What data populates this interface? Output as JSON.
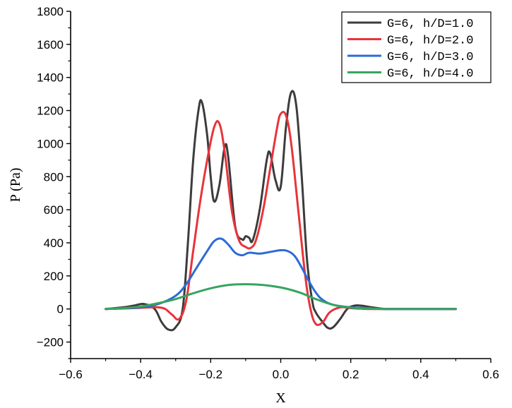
{
  "chart_data": {
    "type": "line",
    "title": "",
    "xlabel": "X",
    "ylabel": "P (Pa)",
    "xlim": [
      -0.6,
      0.6
    ],
    "ylim": [
      -300,
      1800
    ],
    "xticks": [
      -0.6,
      -0.4,
      -0.2,
      0.0,
      0.2,
      0.4,
      0.6
    ],
    "xtick_labels": [
      "−0.6",
      "−0.4",
      "−0.2",
      "0.0",
      "0.2",
      "0.4",
      "0.6"
    ],
    "yticks": [
      -200,
      0,
      200,
      400,
      600,
      800,
      1000,
      1200,
      1400,
      1600,
      1800
    ],
    "ytick_labels": [
      "−200",
      "0",
      "200",
      "400",
      "600",
      "800",
      "1000",
      "1200",
      "1400",
      "1600",
      "1800"
    ],
    "grid": false,
    "legend_position": "top-right",
    "series": [
      {
        "name": "G=6, h/D=1.0",
        "color": "#3c3c3c",
        "x": [
          -0.5,
          -0.45,
          -0.42,
          -0.39,
          -0.36,
          -0.34,
          -0.32,
          -0.3,
          -0.28,
          -0.265,
          -0.25,
          -0.235,
          -0.225,
          -0.21,
          -0.2,
          -0.19,
          -0.175,
          -0.16,
          -0.15,
          -0.13,
          -0.11,
          -0.1,
          -0.09,
          -0.08,
          -0.06,
          -0.04,
          -0.03,
          -0.015,
          0.0,
          0.015,
          0.03,
          0.045,
          0.06,
          0.075,
          0.09,
          0.1,
          0.12,
          0.135,
          0.15,
          0.17,
          0.19,
          0.21,
          0.23,
          0.26,
          0.3,
          0.35,
          0.4,
          0.5
        ],
        "y": [
          0,
          10,
          20,
          30,
          0,
          -80,
          -125,
          -110,
          0,
          400,
          900,
          1200,
          1250,
          1050,
          800,
          650,
          750,
          980,
          920,
          500,
          420,
          440,
          430,
          415,
          600,
          900,
          940,
          780,
          740,
          1100,
          1310,
          1220,
          800,
          300,
          50,
          -20,
          -80,
          -115,
          -110,
          -60,
          0,
          20,
          20,
          10,
          0,
          0,
          0,
          0
        ]
      },
      {
        "name": "G=6, h/D=2.0",
        "color": "#e8333a",
        "x": [
          -0.5,
          -0.42,
          -0.37,
          -0.35,
          -0.33,
          -0.31,
          -0.29,
          -0.27,
          -0.25,
          -0.23,
          -0.21,
          -0.19,
          -0.175,
          -0.16,
          -0.14,
          -0.12,
          -0.1,
          -0.085,
          -0.07,
          -0.05,
          -0.03,
          -0.01,
          0.0,
          0.015,
          0.03,
          0.05,
          0.07,
          0.085,
          0.1,
          0.12,
          0.14,
          0.17,
          0.2,
          0.25,
          0.3,
          0.4,
          0.5
        ],
        "y": [
          0,
          5,
          10,
          10,
          0,
          -35,
          -60,
          50,
          350,
          650,
          900,
          1100,
          1120,
          950,
          600,
          420,
          375,
          370,
          420,
          600,
          850,
          1100,
          1180,
          1170,
          1000,
          600,
          200,
          0,
          -90,
          -80,
          -20,
          10,
          5,
          0,
          0,
          0,
          0
        ]
      },
      {
        "name": "G=6, h/D=3.0",
        "color": "#2c6bd6",
        "x": [
          -0.5,
          -0.45,
          -0.4,
          -0.35,
          -0.3,
          -0.27,
          -0.24,
          -0.21,
          -0.19,
          -0.17,
          -0.15,
          -0.13,
          -0.11,
          -0.09,
          -0.06,
          -0.03,
          0.0,
          0.02,
          0.04,
          0.06,
          0.08,
          0.1,
          0.12,
          0.15,
          0.2,
          0.25,
          0.3,
          0.4,
          0.5
        ],
        "y": [
          0,
          5,
          10,
          30,
          80,
          150,
          250,
          350,
          410,
          425,
          390,
          340,
          325,
          340,
          335,
          345,
          355,
          350,
          320,
          250,
          170,
          100,
          55,
          25,
          10,
          5,
          0,
          0,
          0
        ],
        "smooth": true
      },
      {
        "name": "G=6, h/D=4.0",
        "color": "#36a45f",
        "x": [
          -0.5,
          -0.45,
          -0.4,
          -0.35,
          -0.3,
          -0.25,
          -0.2,
          -0.15,
          -0.1,
          -0.05,
          0.0,
          0.03,
          0.06,
          0.1,
          0.15,
          0.2,
          0.25,
          0.3,
          0.4,
          0.5
        ],
        "y": [
          0,
          5,
          15,
          35,
          60,
          95,
          125,
          145,
          150,
          145,
          130,
          115,
          95,
          60,
          25,
          8,
          3,
          0,
          0,
          0
        ],
        "smooth": true
      }
    ]
  }
}
